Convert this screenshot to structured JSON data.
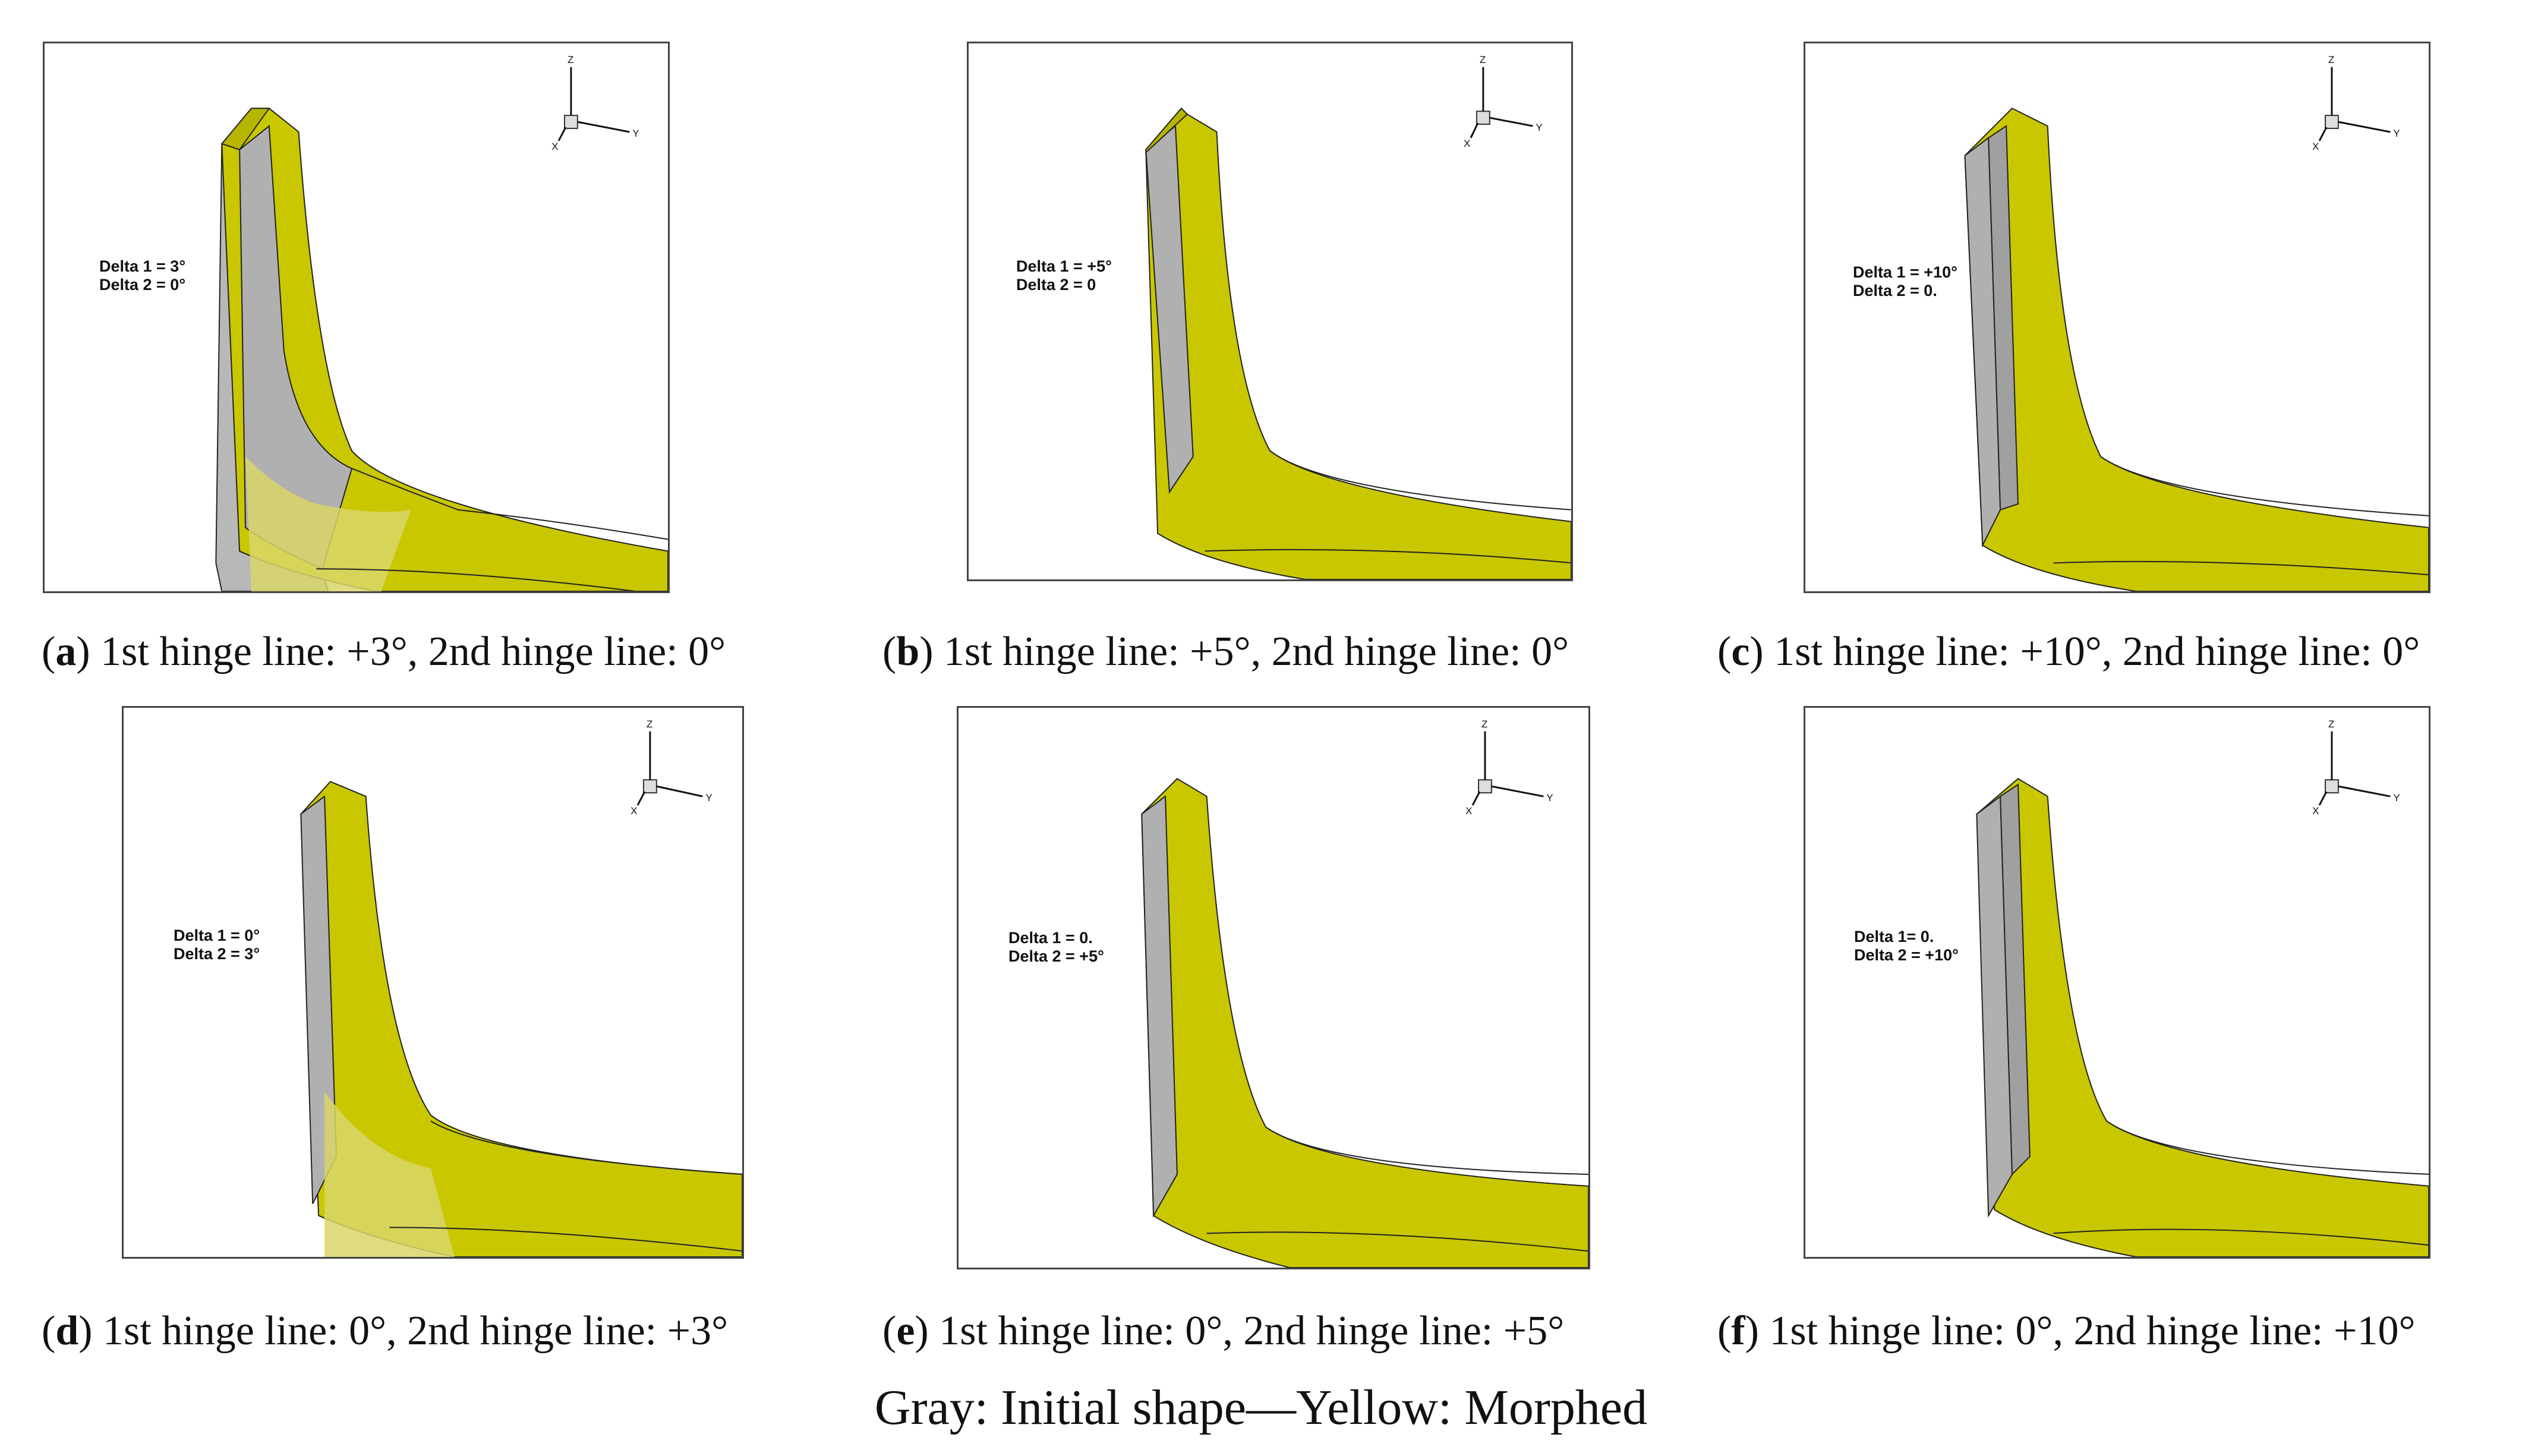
{
  "figure": {
    "panels": [
      {
        "letter": "a",
        "caption": ") 1st hinge line: +3°, 2nd hinge line: 0°",
        "delta1": "Delta 1 = 3°",
        "delta2": "Delta 2 = 0°"
      },
      {
        "letter": "b",
        "caption": ") 1st hinge line: +5°, 2nd hinge line: 0°",
        "delta1": "Delta 1 = +5°",
        "delta2": "Delta 2 = 0"
      },
      {
        "letter": "c",
        "caption": ") 1st hinge line: +10°, 2nd hinge line: 0°",
        "delta1": "Delta 1 = +10°",
        "delta2": "Delta 2 = 0."
      },
      {
        "letter": "d",
        "caption": ") 1st hinge line: 0°, 2nd hinge line: +3°",
        "delta1": "Delta 1 = 0°",
        "delta2": "Delta 2 = 3°"
      },
      {
        "letter": "e",
        "caption": ") 1st hinge line: 0°, 2nd hinge line: +5°",
        "delta1": "Delta 1 = 0.",
        "delta2": "Delta 2 = +5°"
      },
      {
        "letter": "f",
        "caption": ") 1st hinge line: 0°, 2nd hinge line: +10°",
        "delta1": "Delta 1= 0.",
        "delta2": "Delta 2 = +10°"
      }
    ],
    "axis_labels": {
      "z": "Z",
      "y": "Y",
      "x": "X"
    },
    "legend_text": "Gray: Initial shape—Yellow: Morphed",
    "colors": {
      "initial_shape": "#a9a9a9",
      "morphed": "#c9c700",
      "morphed_dark": "#8c8a00",
      "outline": "#222222"
    }
  }
}
